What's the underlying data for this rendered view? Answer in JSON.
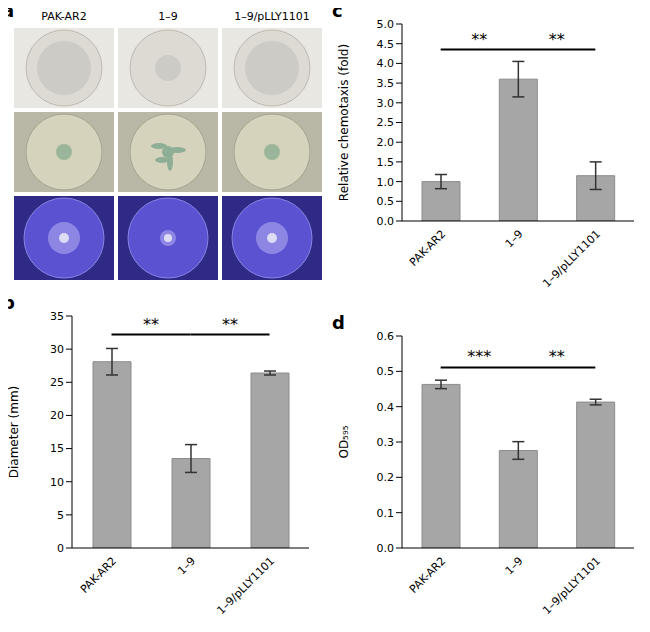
{
  "photo_panel": {
    "panel": "a",
    "columns": [
      "PAK-AR2",
      "1–9",
      "1–9/pLLY1101"
    ]
  },
  "chart_data": [
    {
      "panel": "b",
      "type": "bar",
      "y_label": "Diameter (mm)",
      "categories": [
        "PAK-AR2",
        "1–9",
        "1–9/pLLY1101"
      ],
      "values": [
        28.1,
        13.5,
        26.4
      ],
      "errors": [
        2.0,
        2.1,
        0.3
      ],
      "color": "#a6a6a6",
      "ylim": [
        0,
        35
      ],
      "yticks": [
        0,
        5,
        10,
        15,
        20,
        25,
        30,
        35
      ],
      "grid": false,
      "annotations": [
        {
          "between": [
            "PAK-AR2",
            "1–9"
          ],
          "text": "**"
        },
        {
          "between": [
            "1–9",
            "1–9/pLLY1101"
          ],
          "text": "**"
        }
      ]
    },
    {
      "panel": "c",
      "type": "bar",
      "y_label": "Relative chemotaxis (fold)",
      "categories": [
        "PAK-AR2",
        "1–9",
        "1–9/pLLY1101"
      ],
      "values": [
        1.0,
        3.6,
        1.15
      ],
      "errors": [
        0.18,
        0.45,
        0.35
      ],
      "color": "#a6a6a6",
      "ylim": [
        0,
        5
      ],
      "yticks": [
        {
          "value": 0,
          "label": "0.0"
        },
        {
          "value": 0.5,
          "label": "0.5"
        },
        {
          "value": 1,
          "label": "1.0"
        },
        {
          "value": 1.5,
          "label": "1.5"
        },
        {
          "value": 2,
          "label": "2.0"
        },
        {
          "value": 2.5,
          "label": "2.5"
        },
        {
          "value": 3,
          "label": "3.0"
        },
        {
          "value": 3.5,
          "label": "3.5"
        },
        {
          "value": 4,
          "label": "4.0"
        },
        {
          "value": 4.5,
          "label": "4.5"
        },
        {
          "value": 5,
          "label": "5.0"
        }
      ],
      "grid": false,
      "annotations": [
        {
          "between": [
            "PAK-AR2",
            "1–9"
          ],
          "text": "**"
        },
        {
          "between": [
            "1–9",
            "1–9/pLLY1101"
          ],
          "text": "**"
        }
      ]
    },
    {
      "panel": "d",
      "type": "bar",
      "y_label": "OD₅₉₅",
      "categories": [
        "PAK-AR2",
        "1–9",
        "1–9/pLLY1101"
      ],
      "values": [
        0.463,
        0.276,
        0.413
      ],
      "errors": [
        0.012,
        0.025,
        0.008
      ],
      "color": "#a6a6a6",
      "ylim": [
        0,
        0.6
      ],
      "yticks": [
        {
          "value": 0,
          "label": "0.0"
        },
        {
          "value": 0.1,
          "label": "0.1"
        },
        {
          "value": 0.2,
          "label": "0.2"
        },
        {
          "value": 0.3,
          "label": "0.3"
        },
        {
          "value": 0.4,
          "label": "0.4"
        },
        {
          "value": 0.5,
          "label": "0.5"
        },
        {
          "value": 0.6,
          "label": "0.6"
        }
      ],
      "grid": false,
      "annotations": [
        {
          "between": [
            "PAK-AR2",
            "1–9"
          ],
          "text": "***"
        },
        {
          "between": [
            "1–9",
            "1–9/pLLY1101"
          ],
          "text": "**"
        }
      ]
    }
  ]
}
